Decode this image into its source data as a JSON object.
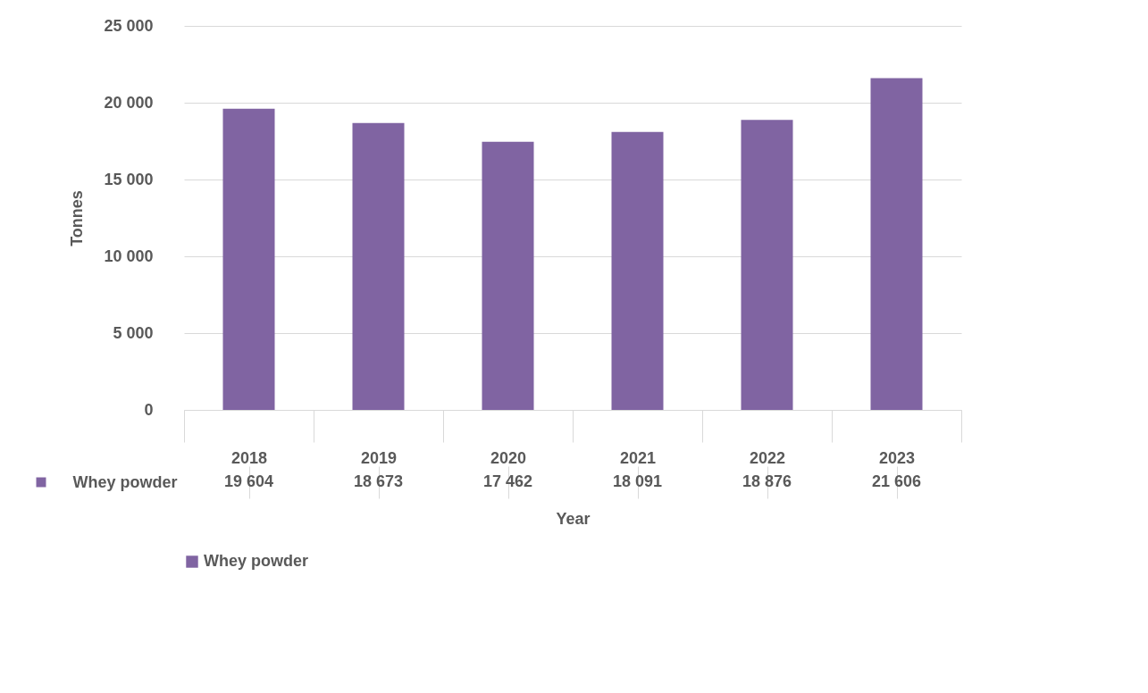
{
  "chart_data": {
    "type": "bar",
    "xlabel": "Year",
    "ylabel": "Tonnes",
    "categories": [
      "2018",
      "2019",
      "2020",
      "2021",
      "2022",
      "2023"
    ],
    "series": [
      {
        "name": "Whey powder",
        "color": "#8064a2",
        "values": [
          19604,
          18673,
          17462,
          18091,
          18876,
          21606
        ],
        "value_labels": [
          "19 604",
          "18 673",
          "17 462",
          "18 091",
          "18 876",
          "21 606"
        ]
      }
    ],
    "ylim": [
      0,
      25000
    ],
    "yticks": [
      {
        "value": 0,
        "label": "0"
      },
      {
        "value": 5000,
        "label": "5 000"
      },
      {
        "value": 10000,
        "label": "10 000"
      },
      {
        "value": 15000,
        "label": "15 000"
      },
      {
        "value": 20000,
        "label": "20 000"
      },
      {
        "value": 25000,
        "label": "25 000"
      }
    ],
    "grid": "y",
    "legend": "bottom"
  }
}
